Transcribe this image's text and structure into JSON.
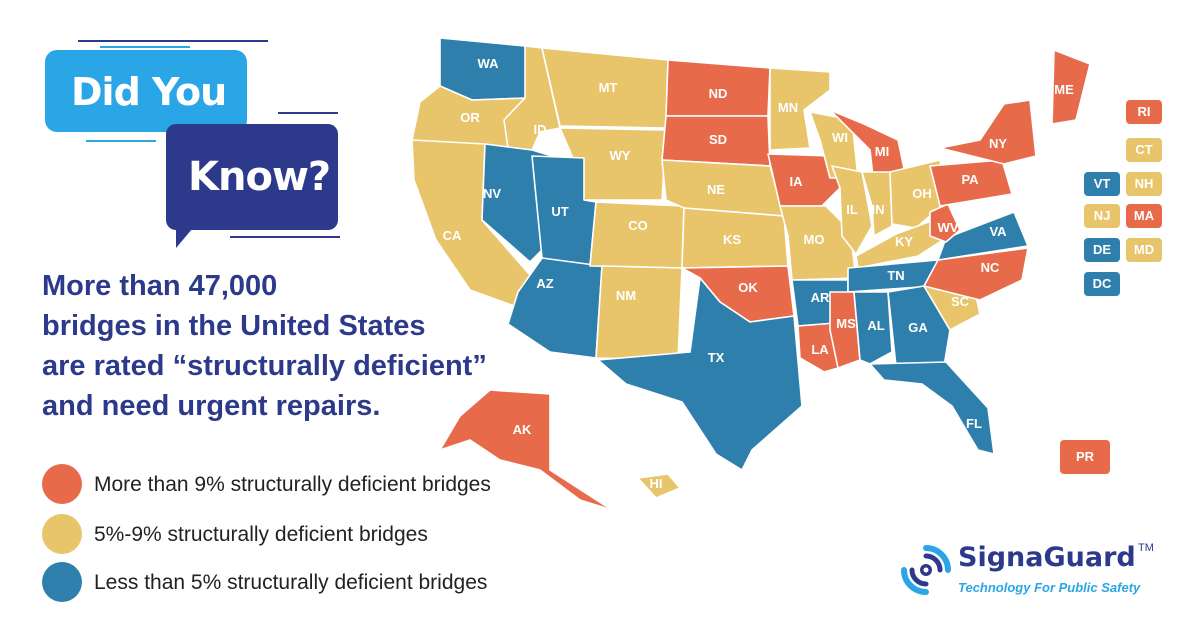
{
  "bubbles": {
    "did": "Did You",
    "know": "Know?"
  },
  "headline": {
    "lines": [
      "More than 47,000",
      "bridges in the United States",
      "are rated “structurally deficient”",
      "and need urgent repairs."
    ]
  },
  "legend": [
    {
      "label": "More than 9% structurally deficient bridges",
      "color": "#e76b4a"
    },
    {
      "label": "5%-9% structurally deficient bridges",
      "color": "#e8c46a"
    },
    {
      "label": "Less than 5% structurally deficient bridges",
      "color": "#2e7fab"
    }
  ],
  "colors": {
    "high": "#e76b4a",
    "mid": "#e8c46a",
    "low": "#2e7fab",
    "navy": "#2d3a8c",
    "sky": "#2aa6e6"
  },
  "map_states": {
    "WA": "low",
    "OR": "mid",
    "CA": "mid",
    "ID": "mid",
    "NV": "low",
    "MT": "mid",
    "WY": "mid",
    "UT": "low",
    "AZ": "low",
    "CO": "mid",
    "NM": "mid",
    "ND": "high",
    "SD": "high",
    "NE": "mid",
    "KS": "mid",
    "OK": "high",
    "TX": "low",
    "MN": "mid",
    "IA": "high",
    "MO": "mid",
    "AR": "low",
    "LA": "high",
    "WI": "mid",
    "IL": "mid",
    "MI": "high",
    "IN": "mid",
    "OH": "mid",
    "KY": "mid",
    "TN": "low",
    "MS": "high",
    "AL": "low",
    "GA": "low",
    "FL": "low",
    "SC": "mid",
    "NC": "high",
    "VA": "low",
    "WV": "high",
    "PA": "high",
    "NY": "high",
    "ME": "high",
    "AK": "high",
    "HI": "mid"
  },
  "side_tags": [
    {
      "code": "RI",
      "level": "high"
    },
    {
      "code": "CT",
      "level": "mid"
    },
    {
      "code": "VT",
      "level": "low"
    },
    {
      "code": "NH",
      "level": "mid"
    },
    {
      "code": "NJ",
      "level": "mid"
    },
    {
      "code": "MA",
      "level": "high"
    },
    {
      "code": "DE",
      "level": "low"
    },
    {
      "code": "MD",
      "level": "mid"
    },
    {
      "code": "DC",
      "level": "low"
    }
  ],
  "pr_tag": {
    "code": "PR",
    "level": "high"
  },
  "logo": {
    "name": "SignaGuard",
    "tm": "TM",
    "tagline": "Technology For Public Safety"
  }
}
